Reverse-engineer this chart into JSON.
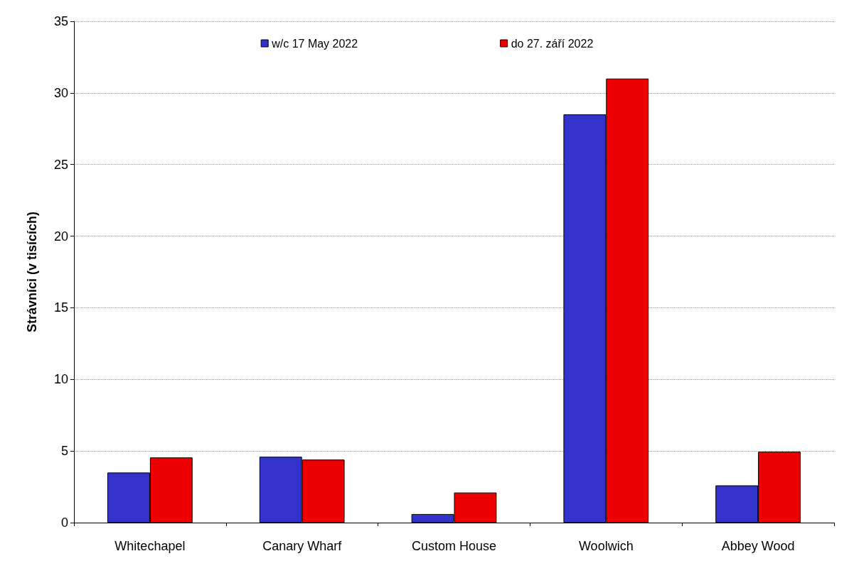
{
  "chart_data": {
    "type": "bar",
    "ylabel": "Strávníci (v tisících)",
    "categories": [
      "Whitechapel",
      "Canary Wharf",
      "Custom House",
      "Woolwich",
      "Abbey Wood"
    ],
    "series": [
      {
        "name": "w/c 17 May 2022",
        "color": "#3333cc",
        "values": [
          3.5,
          4.6,
          0.6,
          28.5,
          2.6
        ]
      },
      {
        "name": "do 27. září 2022",
        "color": "#ee0000",
        "values": [
          4.55,
          4.4,
          2.1,
          31.0,
          4.95
        ]
      }
    ],
    "ylim": [
      0,
      35
    ],
    "yticks": [
      0,
      5,
      10,
      15,
      20,
      25,
      30,
      35
    ],
    "grid": "y",
    "legend": "top"
  }
}
